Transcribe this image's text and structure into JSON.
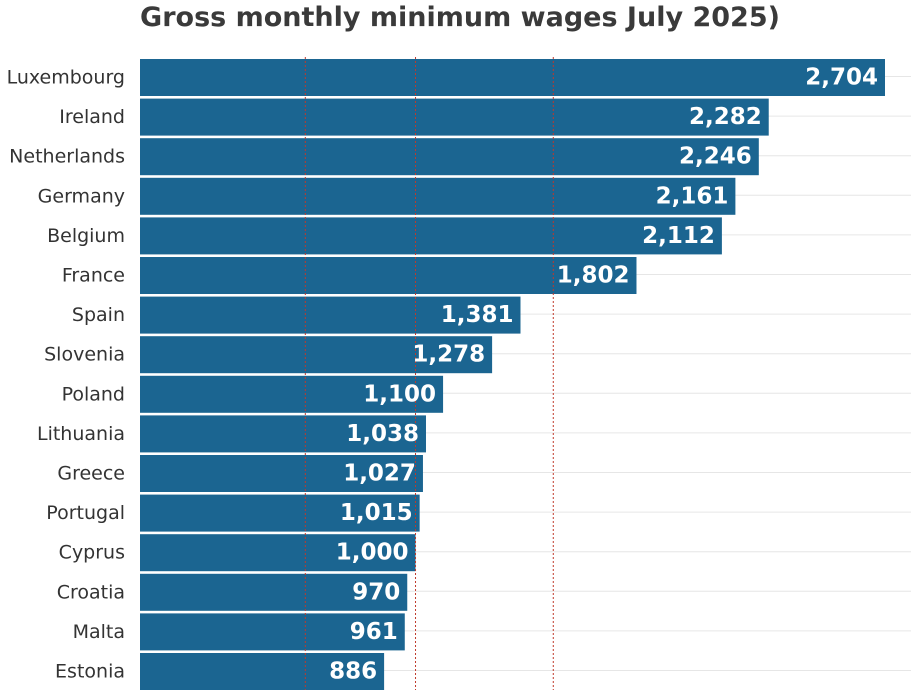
{
  "chart_data": {
    "type": "bar",
    "orientation": "horizontal",
    "title": "Gross monthly minimum wages July 2025)",
    "categories": [
      "Luxembourg",
      "Ireland",
      "Netherlands",
      "Germany",
      "Belgium",
      "France",
      "Spain",
      "Slovenia",
      "Poland",
      "Lithuania",
      "Greece",
      "Portugal",
      "Cyprus",
      "Croatia",
      "Malta",
      "Estonia"
    ],
    "values": [
      2704,
      2282,
      2246,
      2161,
      2112,
      1802,
      1381,
      1278,
      1100,
      1038,
      1027,
      1015,
      1000,
      970,
      961,
      886
    ],
    "value_labels": [
      "2,704",
      "2,282",
      "2,246",
      "2,161",
      "2,112",
      "1,802",
      "1,381",
      "1,278",
      "1,100",
      "1,038",
      "1,027",
      "1,015",
      "1,000",
      "970",
      "961",
      "886"
    ],
    "xlim": [
      0,
      2800
    ],
    "reference_lines": [
      600,
      1000,
      1500
    ],
    "grid": true,
    "bar_color": "#1b6591",
    "reference_line_color": "#c0392b",
    "grid_color": "#e6e6e6"
  }
}
